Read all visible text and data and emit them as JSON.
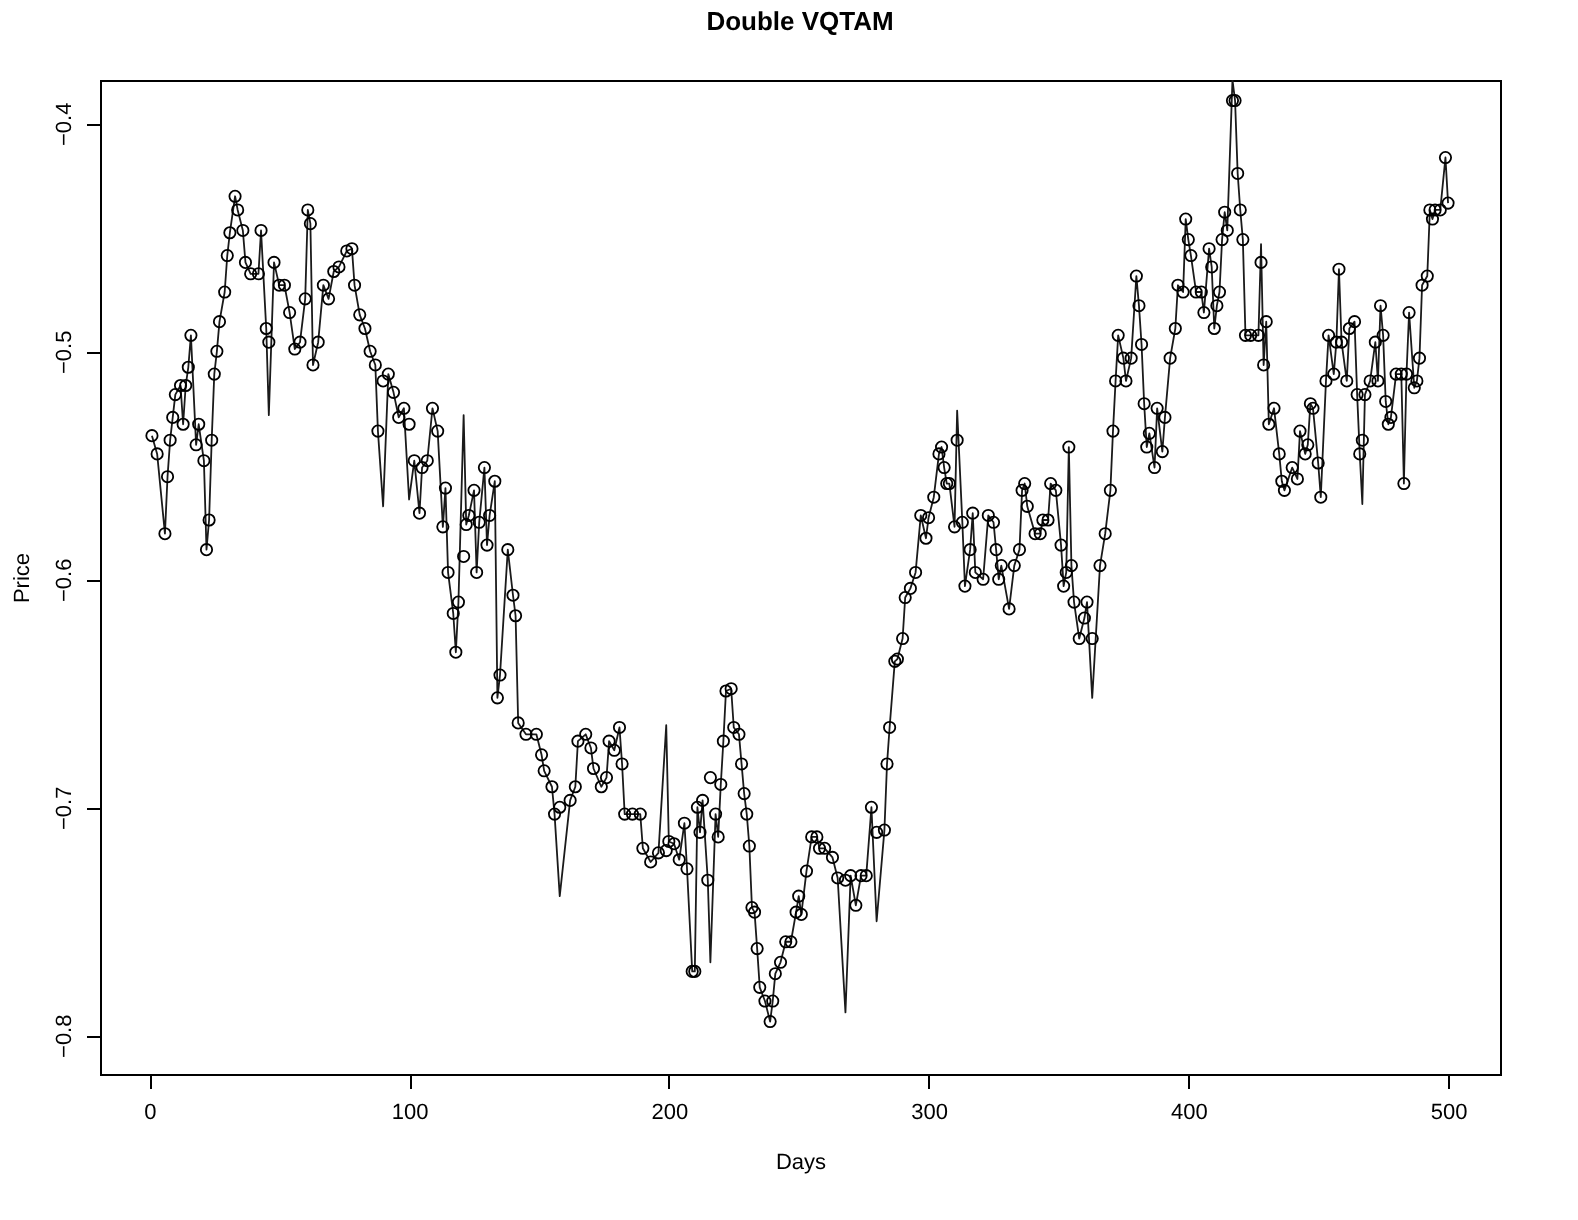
{
  "chart_data": {
    "type": "line",
    "title": "Double VQTAM",
    "xlabel": "Days",
    "ylabel": "Price",
    "xlim": [
      -19,
      520
    ],
    "ylim": [
      -0.817,
      -0.381
    ],
    "xticks": [
      0,
      100,
      200,
      300,
      400,
      500
    ],
    "yticks": [
      -0.8,
      -0.7,
      -0.6,
      -0.5,
      -0.4
    ],
    "grid": false,
    "line_style": "solid",
    "x": [
      1,
      3,
      6,
      7,
      8,
      9,
      10,
      12,
      13,
      14,
      15,
      16,
      18,
      19,
      21,
      22,
      23,
      24,
      25,
      26,
      27,
      29,
      30,
      31,
      33,
      34,
      36,
      37,
      39,
      42,
      43,
      45,
      46,
      48,
      50,
      52,
      54,
      56,
      58,
      60,
      61,
      62,
      63,
      65,
      67,
      69,
      71,
      73,
      76,
      78,
      79,
      81,
      83,
      85,
      87,
      88,
      90,
      92,
      94,
      96,
      98,
      100,
      102,
      104,
      105,
      107,
      109,
      111,
      113,
      114,
      115,
      117,
      118,
      119,
      121,
      122,
      123,
      125,
      126,
      127,
      129,
      130,
      131,
      133,
      134,
      135,
      138,
      140,
      141,
      142,
      145,
      149,
      151,
      152,
      155,
      156,
      158,
      162,
      164,
      165,
      168,
      170,
      171,
      174,
      176,
      177,
      179,
      181,
      182,
      183,
      186,
      189,
      190,
      193,
      196,
      199,
      200,
      202,
      204,
      206,
      207,
      209,
      210,
      211,
      212,
      213,
      215,
      216,
      218,
      219,
      220,
      221,
      222,
      224,
      225,
      227,
      228,
      229,
      230,
      231,
      232,
      233,
      234,
      235,
      237,
      239,
      240,
      241,
      243,
      245,
      247,
      249,
      250,
      251,
      253,
      255,
      257,
      258,
      260,
      263,
      265,
      268,
      270,
      272,
      274,
      276,
      278,
      280,
      283,
      284,
      285,
      287,
      288,
      290,
      291,
      293,
      295,
      297,
      299,
      300,
      302,
      304,
      305,
      306,
      307,
      308,
      310,
      311,
      313,
      314,
      316,
      317,
      318,
      321,
      323,
      325,
      326,
      327,
      328,
      331,
      333,
      335,
      336,
      337,
      338,
      341,
      343,
      344,
      346,
      347,
      349,
      351,
      352,
      353,
      354,
      355,
      356,
      358,
      360,
      361,
      363,
      366,
      368,
      370,
      371,
      372,
      373,
      375,
      376,
      378,
      380,
      381,
      382,
      383,
      384,
      385,
      387,
      388,
      390,
      391,
      393,
      395,
      396,
      398,
      399,
      400,
      401,
      403,
      405,
      406,
      408,
      409,
      410,
      411,
      412,
      413,
      414,
      415,
      417,
      418,
      419,
      420,
      421,
      422,
      424,
      427,
      428,
      429,
      430,
      431,
      433,
      435,
      436,
      437,
      440,
      442,
      443,
      445,
      446,
      447,
      448,
      450,
      451,
      453,
      454,
      456,
      457,
      458,
      459,
      461,
      462,
      464,
      465,
      466,
      467,
      468,
      470,
      472,
      473,
      474,
      475,
      476,
      477,
      478,
      480,
      482,
      483,
      484,
      485,
      487,
      488,
      489,
      490,
      492,
      493,
      494,
      495,
      497,
      499,
      500
    ],
    "series": [
      {
        "color": "#1a1a1a",
        "values": [
          -0.537,
          -0.545,
          -0.58,
          -0.555,
          -0.539,
          -0.529,
          -0.519,
          -0.515,
          -0.532,
          -0.515,
          -0.507,
          -0.493,
          -0.541,
          -0.532,
          -0.548,
          -0.587,
          -0.574,
          -0.539,
          -0.51,
          -0.5,
          -0.487,
          -0.474,
          -0.458,
          -0.448,
          -0.432,
          -0.438,
          -0.447,
          -0.461,
          -0.466,
          -0.466,
          -0.447,
          -0.49,
          -0.528,
          -0.461,
          -0.471,
          -0.471,
          -0.483,
          -0.499,
          -0.496,
          -0.477,
          -0.438,
          -0.444,
          -0.506,
          -0.496,
          -0.471,
          -0.477,
          -0.465,
          -0.463,
          -0.456,
          -0.455,
          -0.471,
          -0.484,
          -0.49,
          -0.5,
          -0.506,
          -0.535,
          -0.568,
          -0.51,
          -0.518,
          -0.529,
          -0.525,
          -0.565,
          -0.548,
          -0.571,
          -0.551,
          -0.548,
          -0.525,
          -0.535,
          -0.577,
          -0.56,
          -0.597,
          -0.615,
          -0.632,
          -0.61,
          -0.528,
          -0.576,
          -0.572,
          -0.561,
          -0.597,
          -0.575,
          -0.551,
          -0.585,
          -0.572,
          -0.557,
          -0.652,
          -0.642,
          -0.587,
          -0.607,
          -0.616,
          -0.663,
          -0.668,
          -0.668,
          -0.677,
          -0.684,
          -0.691,
          -0.703,
          -0.739,
          -0.697,
          -0.691,
          -0.671,
          -0.668,
          -0.674,
          -0.683,
          -0.691,
          -0.687,
          -0.671,
          -0.675,
          -0.665,
          -0.681,
          -0.703,
          -0.703,
          -0.703,
          -0.718,
          -0.724,
          -0.72,
          -0.664,
          -0.715,
          -0.716,
          -0.723,
          -0.707,
          -0.727,
          -0.772,
          -0.772,
          -0.7,
          -0.711,
          -0.697,
          -0.732,
          -0.768,
          -0.703,
          -0.713,
          -0.69,
          -0.671,
          -0.649,
          -0.648,
          -0.665,
          -0.668,
          -0.681,
          -0.694,
          -0.703,
          -0.717,
          -0.744,
          -0.746,
          -0.762,
          -0.779,
          -0.785,
          -0.794,
          -0.785,
          -0.773,
          -0.768,
          -0.759,
          -0.759,
          -0.746,
          -0.739,
          -0.747,
          -0.728,
          -0.713,
          -0.713,
          -0.718,
          -0.718,
          -0.722,
          -0.731,
          -0.79,
          -0.73,
          -0.743,
          -0.73,
          -0.73,
          -0.7,
          -0.75,
          -0.71,
          -0.681,
          -0.665,
          -0.636,
          -0.635,
          -0.626,
          -0.608,
          -0.604,
          -0.597,
          -0.572,
          -0.582,
          -0.573,
          -0.564,
          -0.545,
          -0.542,
          -0.551,
          -0.558,
          -0.558,
          -0.577,
          -0.526,
          -0.575,
          -0.603,
          -0.587,
          -0.571,
          -0.597,
          -0.6,
          -0.572,
          -0.575,
          -0.587,
          -0.6,
          -0.594,
          -0.613,
          -0.594,
          -0.587,
          -0.561,
          -0.558,
          -0.568,
          -0.58,
          -0.58,
          -0.574,
          -0.574,
          -0.558,
          -0.561,
          -0.585,
          -0.603,
          -0.597,
          -0.542,
          -0.594,
          -0.61,
          -0.626,
          -0.617,
          -0.61,
          -0.652,
          -0.594,
          -0.58,
          -0.561,
          -0.535,
          -0.513,
          -0.493,
          -0.503,
          -0.513,
          -0.503,
          -0.467,
          -0.48,
          -0.497,
          -0.523,
          -0.542,
          -0.536,
          -0.551,
          -0.525,
          -0.544,
          -0.529,
          -0.503,
          -0.49,
          -0.471,
          -0.474,
          -0.442,
          -0.451,
          -0.458,
          -0.474,
          -0.474,
          -0.483,
          -0.455,
          -0.463,
          -0.49,
          -0.48,
          -0.474,
          -0.451,
          -0.439,
          -0.447,
          -0.381,
          -0.39,
          -0.422,
          -0.438,
          -0.451,
          -0.493,
          -0.493,
          -0.493,
          -0.453,
          -0.506,
          -0.487,
          -0.532,
          -0.525,
          -0.545,
          -0.557,
          -0.561,
          -0.551,
          -0.556,
          -0.535,
          -0.545,
          -0.541,
          -0.523,
          -0.525,
          -0.549,
          -0.564,
          -0.513,
          -0.493,
          -0.51,
          -0.496,
          -0.464,
          -0.496,
          -0.513,
          -0.49,
          -0.487,
          -0.519,
          -0.545,
          -0.567,
          -0.519,
          -0.513,
          -0.496,
          -0.513,
          -0.48,
          -0.493,
          -0.522,
          -0.532,
          -0.529,
          -0.51,
          -0.51,
          -0.558,
          -0.51,
          -0.483,
          -0.516,
          -0.513,
          -0.503,
          -0.471,
          -0.467,
          -0.438,
          -0.442,
          -0.438,
          -0.438,
          -0.415,
          -0.435
        ]
      },
      {
        "type": "scatter",
        "marker": "circle",
        "color": "#000000",
        "values": [
          -0.537,
          -0.545,
          -0.58,
          -0.555,
          -0.539,
          -0.529,
          -0.519,
          -0.515,
          -0.532,
          -0.515,
          -0.507,
          -0.493,
          -0.541,
          -0.532,
          -0.548,
          -0.587,
          -0.574,
          -0.539,
          -0.51,
          -0.5,
          -0.487,
          -0.474,
          -0.458,
          -0.448,
          -0.432,
          -0.438,
          -0.447,
          -0.461,
          -0.466,
          -0.466,
          -0.447,
          -0.49,
          -0.496,
          -0.461,
          -0.471,
          -0.471,
          -0.483,
          -0.499,
          -0.496,
          -0.477,
          -0.438,
          -0.444,
          -0.506,
          -0.496,
          -0.471,
          -0.477,
          -0.465,
          -0.463,
          -0.456,
          -0.455,
          -0.471,
          -0.484,
          -0.49,
          -0.5,
          -0.506,
          -0.535,
          -0.513,
          -0.51,
          -0.518,
          -0.529,
          -0.525,
          -0.532,
          -0.548,
          -0.571,
          -0.551,
          -0.548,
          -0.525,
          -0.535,
          -0.577,
          -0.56,
          -0.597,
          -0.615,
          -0.632,
          -0.61,
          -0.59,
          -0.576,
          -0.572,
          -0.561,
          -0.597,
          -0.575,
          -0.551,
          -0.585,
          -0.572,
          -0.557,
          -0.652,
          -0.642,
          -0.587,
          -0.607,
          -0.616,
          -0.663,
          -0.668,
          -0.668,
          -0.677,
          -0.684,
          -0.691,
          -0.703,
          -0.7,
          -0.697,
          -0.691,
          -0.671,
          -0.668,
          -0.674,
          -0.683,
          -0.691,
          -0.687,
          -0.671,
          -0.675,
          -0.665,
          -0.681,
          -0.703,
          -0.703,
          -0.703,
          -0.718,
          -0.724,
          -0.72,
          -0.719,
          -0.715,
          -0.716,
          -0.723,
          -0.707,
          -0.727,
          -0.772,
          -0.772,
          -0.7,
          -0.711,
          -0.697,
          -0.732,
          -0.687,
          -0.703,
          -0.713,
          -0.69,
          -0.671,
          -0.649,
          -0.648,
          -0.665,
          -0.668,
          -0.681,
          -0.694,
          -0.703,
          -0.717,
          -0.744,
          -0.746,
          -0.762,
          -0.779,
          -0.785,
          -0.794,
          -0.785,
          -0.773,
          -0.768,
          -0.759,
          -0.759,
          -0.746,
          -0.739,
          -0.747,
          -0.728,
          -0.713,
          -0.713,
          -0.718,
          -0.718,
          -0.722,
          -0.731,
          -0.732,
          -0.73,
          -0.743,
          -0.73,
          -0.73,
          -0.7,
          -0.711,
          -0.71,
          -0.681,
          -0.665,
          -0.636,
          -0.635,
          -0.626,
          -0.608,
          -0.604,
          -0.597,
          -0.572,
          -0.582,
          -0.573,
          -0.564,
          -0.545,
          -0.542,
          -0.551,
          -0.558,
          -0.558,
          -0.577,
          -0.539,
          -0.575,
          -0.603,
          -0.587,
          -0.571,
          -0.597,
          -0.6,
          -0.572,
          -0.575,
          -0.587,
          -0.6,
          -0.594,
          -0.613,
          -0.594,
          -0.587,
          -0.561,
          -0.558,
          -0.568,
          -0.58,
          -0.58,
          -0.574,
          -0.574,
          -0.558,
          -0.561,
          -0.585,
          -0.603,
          -0.597,
          -0.542,
          -0.594,
          -0.61,
          -0.626,
          -0.617,
          -0.61,
          -0.626,
          -0.594,
          -0.58,
          -0.561,
          -0.535,
          -0.513,
          -0.493,
          -0.503,
          -0.513,
          -0.503,
          -0.467,
          -0.48,
          -0.497,
          -0.523,
          -0.542,
          -0.536,
          -0.551,
          -0.525,
          -0.544,
          -0.529,
          -0.503,
          -0.49,
          -0.471,
          -0.474,
          -0.442,
          -0.451,
          -0.458,
          -0.474,
          -0.474,
          -0.483,
          -0.455,
          -0.463,
          -0.49,
          -0.48,
          -0.474,
          -0.451,
          -0.439,
          -0.447,
          -0.39,
          -0.39,
          -0.422,
          -0.438,
          -0.451,
          -0.493,
          -0.493,
          -0.493,
          -0.461,
          -0.506,
          -0.487,
          -0.532,
          -0.525,
          -0.545,
          -0.557,
          -0.561,
          -0.551,
          -0.556,
          -0.535,
          -0.545,
          -0.541,
          -0.523,
          -0.525,
          -0.549,
          -0.564,
          -0.513,
          -0.493,
          -0.51,
          -0.496,
          -0.464,
          -0.496,
          -0.513,
          -0.49,
          -0.487,
          -0.519,
          -0.545,
          -0.539,
          -0.519,
          -0.513,
          -0.496,
          -0.513,
          -0.48,
          -0.493,
          -0.522,
          -0.532,
          -0.529,
          -0.51,
          -0.51,
          -0.558,
          -0.51,
          -0.483,
          -0.516,
          -0.513,
          -0.503,
          -0.471,
          -0.467,
          -0.438,
          -0.442,
          -0.438,
          -0.438,
          -0.415,
          -0.435
        ]
      }
    ]
  }
}
